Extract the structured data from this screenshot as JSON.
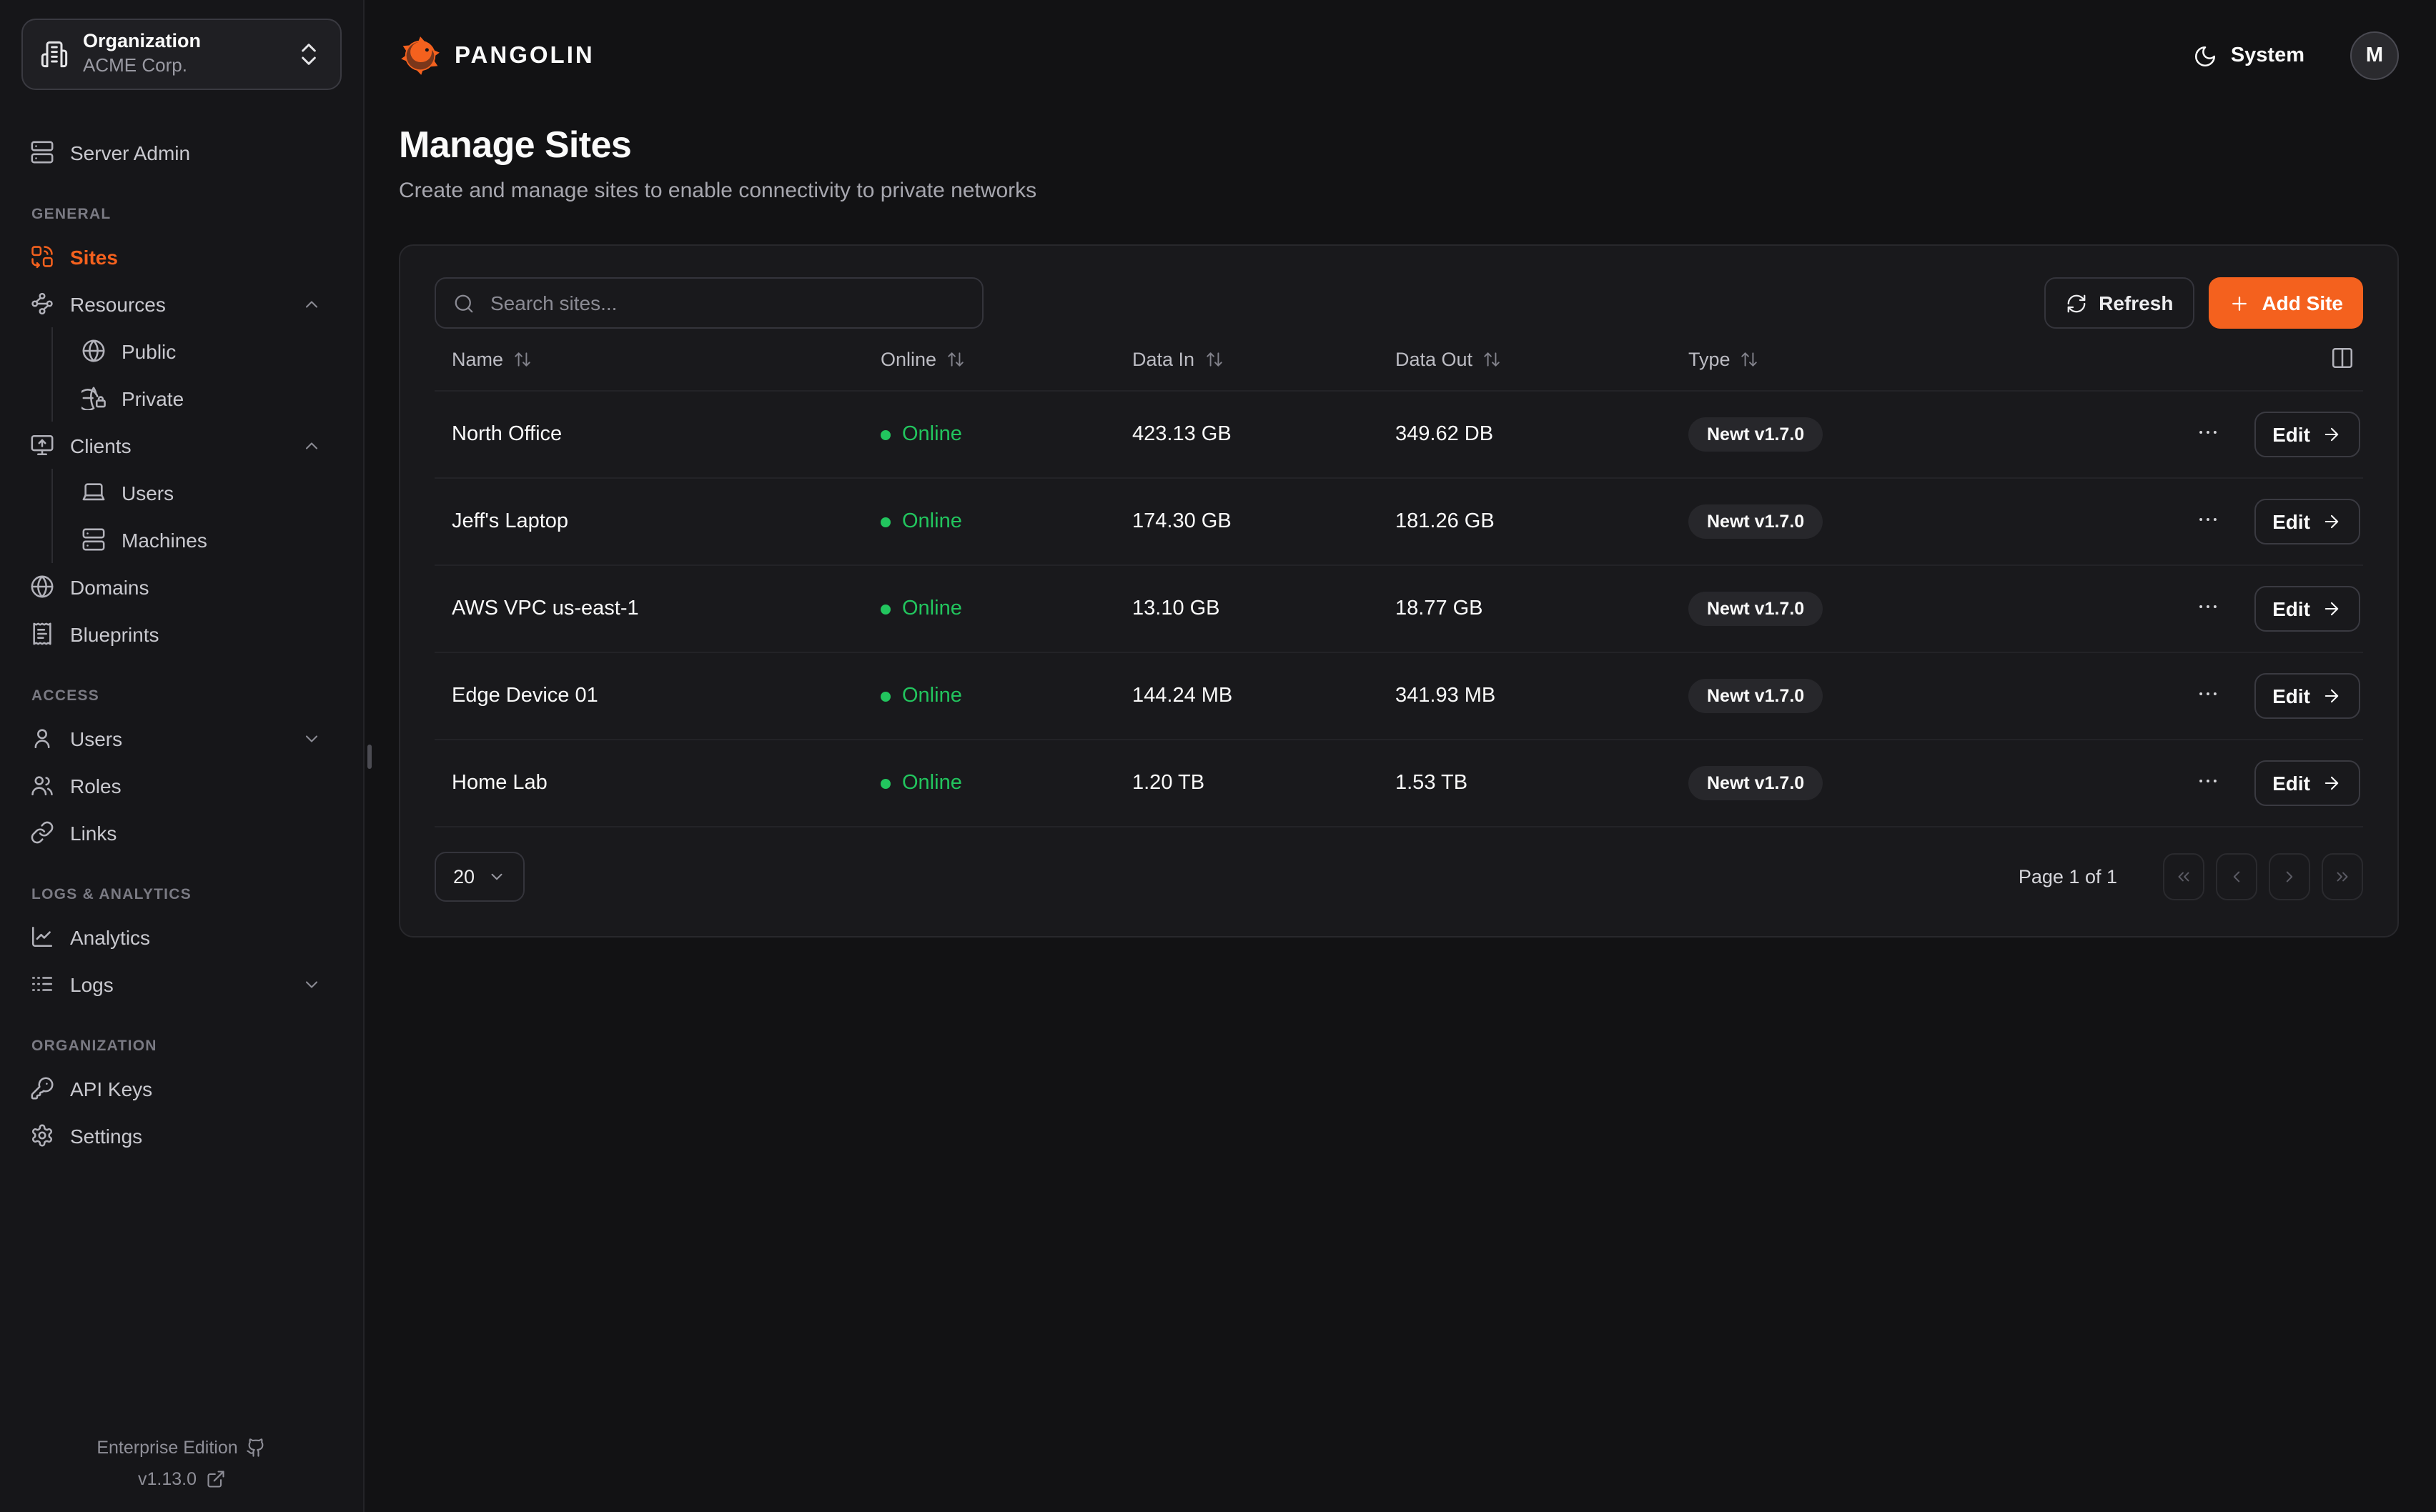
{
  "colors": {
    "accent": "#f4611e",
    "online_green": "#22c55e"
  },
  "org_selector": {
    "title": "Organization",
    "value": "ACME Corp."
  },
  "sidebar": {
    "server_admin": {
      "label": "Server Admin",
      "icon": "server"
    },
    "sections": [
      {
        "label": "GENERAL",
        "items": [
          {
            "label": "Sites",
            "icon": "combine"
          },
          {
            "label": "Resources",
            "icon": "waypoints"
          },
          {
            "label": "Public",
            "icon": "globe"
          },
          {
            "label": "Private",
            "icon": "globe-lock"
          },
          {
            "label": "Clients",
            "icon": "monitor-up"
          },
          {
            "label": "Users",
            "icon": "laptop"
          },
          {
            "label": "Machines",
            "icon": "server"
          },
          {
            "label": "Domains",
            "icon": "globe"
          },
          {
            "label": "Blueprints",
            "icon": "receipt"
          }
        ]
      },
      {
        "label": "ACCESS",
        "items": [
          {
            "label": "Users",
            "icon": "user"
          },
          {
            "label": "Roles",
            "icon": "users"
          },
          {
            "label": "Links",
            "icon": "link"
          }
        ]
      },
      {
        "label": "LOGS & ANALYTICS",
        "items": [
          {
            "label": "Analytics",
            "icon": "chart-line"
          },
          {
            "label": "Logs",
            "icon": "logs"
          }
        ]
      },
      {
        "label": "ORGANIZATION",
        "items": [
          {
            "label": "API Keys",
            "icon": "key"
          },
          {
            "label": "Settings",
            "icon": "settings"
          }
        ]
      }
    ],
    "footer": {
      "edition": "Enterprise Edition",
      "version": "v1.13.0"
    }
  },
  "header": {
    "brand": "PANGOLIN",
    "theme_label": "System",
    "avatar_initial": "M"
  },
  "page": {
    "title": "Manage Sites",
    "subtitle": "Create and manage sites to enable connectivity to private networks"
  },
  "toolbar": {
    "search_placeholder": "Search sites...",
    "refresh_label": "Refresh",
    "add_site_label": "Add Site"
  },
  "table": {
    "headers": [
      "Name",
      "Online",
      "Data In",
      "Data Out",
      "Type"
    ],
    "edit_label": "Edit",
    "rows": [
      {
        "name": "North Office",
        "status": "Online",
        "data_in": "423.13 GB",
        "data_out": "349.62 DB",
        "type": "Newt v1.7.0"
      },
      {
        "name": "Jeff's Laptop",
        "status": "Online",
        "data_in": "174.30 GB",
        "data_out": "181.26 GB",
        "type": "Newt v1.7.0"
      },
      {
        "name": "AWS VPC us-east-1",
        "status": "Online",
        "data_in": "13.10 GB",
        "data_out": "18.77 GB",
        "type": "Newt v1.7.0"
      },
      {
        "name": "Edge Device 01",
        "status": "Online",
        "data_in": "144.24 MB",
        "data_out": "341.93 MB",
        "type": "Newt v1.7.0"
      },
      {
        "name": "Home Lab",
        "status": "Online",
        "data_in": "1.20 TB",
        "data_out": "1.53 TB",
        "type": "Newt v1.7.0"
      }
    ]
  },
  "pagination": {
    "page_size": "20",
    "page_info": "Page 1 of 1"
  },
  "icons": {
    "brand_logo": "logo",
    "org_building": "building",
    "org_caret": "chevrons-up-down",
    "theme_moon": "moon",
    "search": "search",
    "refresh": "refresh",
    "add_plus": "plus",
    "sort": "arrow-up-down",
    "columns": "columns",
    "row_menu": "ellipsis",
    "edit_arrow": "arrow-right",
    "collapse_up": "chevron-up",
    "collapse_down": "chevron-down",
    "page_size_caret": "chevron-down",
    "first_page": "chevrons-left",
    "prev_page": "chevron-left",
    "next_page": "chevron-right",
    "last_page": "chevrons-right",
    "github": "github",
    "external_link": "external-link"
  }
}
